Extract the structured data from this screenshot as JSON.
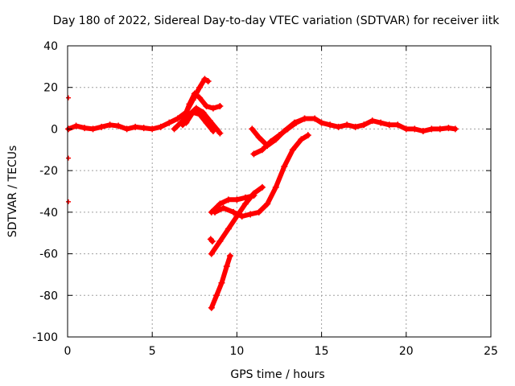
{
  "chart_data": {
    "type": "scatter",
    "title": "Day 180 of 2022, Sidereal Day-to-day VTEC variation (SDTVAR) for receiver iitk",
    "xlabel": "GPS time / hours",
    "ylabel": "SDTVAR / TECUs",
    "xlim": [
      0,
      25
    ],
    "ylim": [
      -100,
      40
    ],
    "xticks": [
      0,
      5,
      10,
      15,
      20,
      25
    ],
    "yticks": [
      -100,
      -80,
      -60,
      -40,
      -20,
      0,
      20,
      40
    ],
    "grid": true,
    "color": "#ff0000",
    "marker": "plus",
    "tracks": [
      [
        [
          0.05,
          0
        ],
        [
          0.5,
          1.5
        ],
        [
          1,
          0.5
        ],
        [
          1.5,
          0
        ],
        [
          2,
          1
        ],
        [
          2.5,
          2
        ],
        [
          3,
          1.5
        ],
        [
          3.5,
          0
        ],
        [
          4,
          1
        ],
        [
          4.5,
          0.5
        ],
        [
          5,
          0
        ],
        [
          5.5,
          1
        ],
        [
          6,
          3
        ],
        [
          6.5,
          5
        ],
        [
          7,
          8
        ],
        [
          7.4,
          14
        ],
        [
          7.8,
          20
        ],
        [
          8.1,
          24
        ],
        [
          8.3,
          23
        ]
      ],
      [
        [
          6.3,
          0
        ],
        [
          6.8,
          4
        ],
        [
          7.2,
          12
        ],
        [
          7.5,
          17
        ],
        [
          7.8,
          15
        ],
        [
          8.2,
          11
        ],
        [
          8.6,
          10
        ],
        [
          9,
          11
        ]
      ],
      [
        [
          6.8,
          2
        ],
        [
          7.2,
          7
        ],
        [
          7.6,
          10
        ],
        [
          8,
          8
        ],
        [
          8.4,
          4
        ],
        [
          8.8,
          0
        ],
        [
          9,
          -2
        ]
      ],
      [
        [
          7,
          3
        ],
        [
          7.4,
          8
        ],
        [
          7.8,
          7
        ],
        [
          8.2,
          3
        ],
        [
          8.6,
          -1
        ]
      ],
      [
        [
          10.9,
          0
        ],
        [
          11.3,
          -4
        ],
        [
          11.8,
          -8
        ],
        [
          12.3,
          -5
        ],
        [
          12.8,
          -1
        ],
        [
          13.4,
          3
        ],
        [
          14,
          5
        ],
        [
          14.6,
          5
        ],
        [
          15,
          3
        ],
        [
          15.5,
          2
        ],
        [
          16,
          1
        ],
        [
          16.5,
          2
        ],
        [
          17,
          1
        ],
        [
          17.5,
          2
        ],
        [
          18,
          4
        ],
        [
          18.5,
          3
        ],
        [
          19,
          2
        ],
        [
          19.5,
          2
        ],
        [
          20,
          0
        ],
        [
          20.5,
          0
        ],
        [
          21,
          -1
        ],
        [
          21.5,
          0
        ],
        [
          22,
          0
        ],
        [
          22.5,
          0.5
        ],
        [
          22.9,
          0
        ]
      ],
      [
        [
          8.5,
          -40
        ],
        [
          9,
          -36
        ],
        [
          9.5,
          -34
        ],
        [
          10,
          -34
        ],
        [
          10.5,
          -33
        ],
        [
          11,
          -32
        ]
      ],
      [
        [
          8.5,
          -60
        ],
        [
          9,
          -54
        ],
        [
          9.5,
          -48
        ],
        [
          10,
          -42
        ],
        [
          10.5,
          -36
        ],
        [
          11,
          -31
        ],
        [
          11.5,
          -28
        ]
      ],
      [
        [
          8.7,
          -40
        ],
        [
          9.2,
          -38
        ],
        [
          9.8,
          -40
        ],
        [
          10.3,
          -42
        ],
        [
          10.8,
          -41
        ],
        [
          11.3,
          -40
        ],
        [
          11.8,
          -36
        ],
        [
          12.3,
          -28
        ],
        [
          12.8,
          -18
        ],
        [
          13.3,
          -10
        ],
        [
          13.8,
          -5
        ],
        [
          14.2,
          -3
        ]
      ],
      [
        [
          11,
          -12
        ],
        [
          11.5,
          -10
        ],
        [
          12,
          -6
        ],
        [
          12.5,
          -3
        ],
        [
          13,
          0
        ],
        [
          13.5,
          3
        ],
        [
          14,
          5
        ]
      ],
      [
        [
          8.5,
          -86
        ],
        [
          8.8,
          -80
        ],
        [
          9.1,
          -74
        ],
        [
          9.4,
          -66
        ],
        [
          9.6,
          -61
        ]
      ],
      [
        [
          8.45,
          -53
        ],
        [
          8.55,
          -54
        ]
      ]
    ],
    "edge_marks": [
      15,
      0,
      -14,
      -35
    ]
  }
}
